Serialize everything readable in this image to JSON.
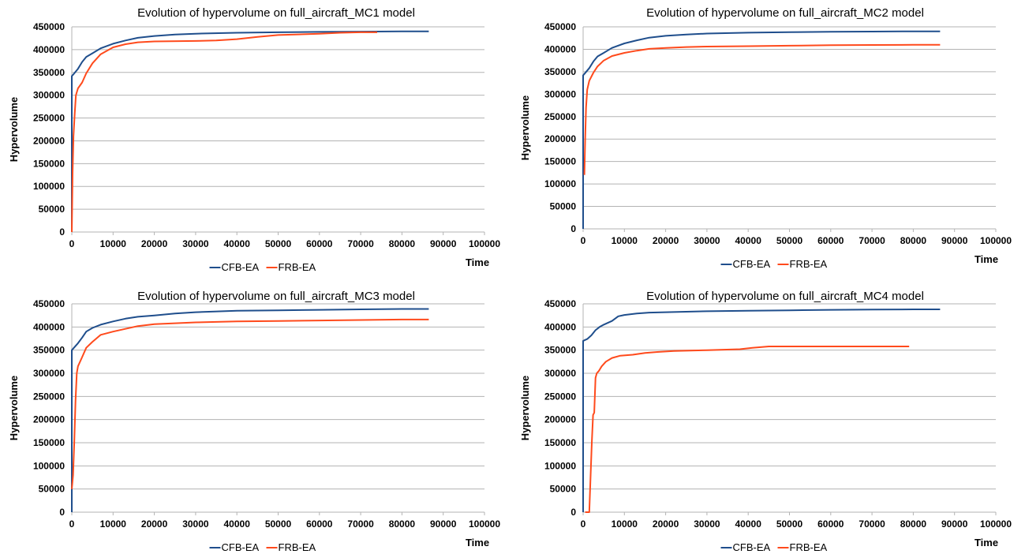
{
  "chart_data": [
    {
      "type": "line",
      "title": "Evolution of hypervolume on full_aircraft_MC1 model",
      "xlabel": "Time",
      "ylabel": "Hypervolume",
      "xlim": [
        0,
        100000
      ],
      "ylim": [
        0,
        450000
      ],
      "xticks": [
        "0",
        "10000",
        "20000",
        "30000",
        "40000",
        "50000",
        "60000",
        "70000",
        "80000",
        "90000",
        "100000"
      ],
      "yticks": [
        "0",
        "50000",
        "100000",
        "150000",
        "200000",
        "250000",
        "300000",
        "350000",
        "400000",
        "450000"
      ],
      "grid": true,
      "legend_position": "bottom",
      "series": [
        {
          "name": "CFB-EA",
          "color": "#1f4e8c",
          "x": [
            0,
            0,
            300,
            1500,
            2500,
            3500,
            5000,
            7000,
            10000,
            13000,
            16000,
            20000,
            25000,
            30000,
            40000,
            50000,
            60000,
            70000,
            80000,
            86500
          ],
          "y": [
            0,
            342000,
            345000,
            358000,
            373000,
            384000,
            392000,
            403000,
            413000,
            420000,
            426000,
            430000,
            433000,
            435000,
            437000,
            438000,
            439000,
            439500,
            440000,
            440000
          ]
        },
        {
          "name": "FRB-EA",
          "color": "#ff4a1c",
          "x": [
            0,
            200,
            400,
            700,
            1000,
            1500,
            2500,
            3500,
            5000,
            7000,
            10000,
            13000,
            16000,
            20000,
            30000,
            35000,
            40000,
            45000,
            50000,
            60000,
            65000,
            70000,
            74000
          ],
          "y": [
            0,
            130000,
            210000,
            260000,
            300000,
            315000,
            328000,
            348000,
            370000,
            390000,
            405000,
            412000,
            416000,
            418000,
            419000,
            420000,
            423000,
            428000,
            432000,
            435000,
            437000,
            438000,
            438000
          ]
        }
      ]
    },
    {
      "type": "line",
      "title": "Evolution of hypervolume on full_aircraft_MC2 model",
      "xlabel": "Time",
      "ylabel": "Hypervolume",
      "xlim": [
        0,
        100000
      ],
      "ylim": [
        0,
        450000
      ],
      "xticks": [
        "0",
        "10000",
        "20000",
        "30000",
        "40000",
        "50000",
        "60000",
        "70000",
        "80000",
        "90000",
        "100000"
      ],
      "yticks": [
        "0",
        "50000",
        "100000",
        "150000",
        "200000",
        "250000",
        "300000",
        "350000",
        "400000",
        "450000"
      ],
      "grid": true,
      "legend_position": "bottom",
      "series": [
        {
          "name": "CFB-EA",
          "color": "#1f4e8c",
          "x": [
            0,
            0,
            300,
            1500,
            2500,
            3500,
            5000,
            7000,
            10000,
            13000,
            16000,
            20000,
            25000,
            30000,
            40000,
            50000,
            60000,
            70000,
            80000,
            86500
          ],
          "y": [
            0,
            342000,
            345000,
            358000,
            373000,
            384000,
            392000,
            403000,
            413000,
            420000,
            426000,
            430000,
            433000,
            435000,
            437000,
            438000,
            439000,
            439500,
            440000,
            440000
          ]
        },
        {
          "name": "FRB-EA",
          "color": "#ff4a1c",
          "x": [
            300,
            500,
            700,
            1000,
            1500,
            2500,
            3500,
            5000,
            7000,
            10000,
            13000,
            16000,
            20000,
            25000,
            30000,
            40000,
            50000,
            60000,
            70000,
            80000,
            86500
          ],
          "y": [
            120000,
            200000,
            270000,
            310000,
            330000,
            348000,
            362000,
            375000,
            385000,
            392000,
            397000,
            401000,
            403000,
            405000,
            406000,
            407000,
            408000,
            409000,
            409500,
            410000,
            410000
          ]
        }
      ]
    },
    {
      "type": "line",
      "title": "Evolution of hypervolume on full_aircraft_MC3 model",
      "xlabel": "Time",
      "ylabel": "Hypervolume",
      "xlim": [
        0,
        100000
      ],
      "ylim": [
        0,
        450000
      ],
      "xticks": [
        "0",
        "10000",
        "20000",
        "30000",
        "40000",
        "50000",
        "60000",
        "70000",
        "80000",
        "90000",
        "100000"
      ],
      "yticks": [
        "0",
        "50000",
        "100000",
        "150000",
        "200000",
        "250000",
        "300000",
        "350000",
        "400000",
        "450000"
      ],
      "grid": true,
      "legend_position": "bottom",
      "series": [
        {
          "name": "CFB-EA",
          "color": "#1f4e8c",
          "x": [
            0,
            0,
            300,
            1500,
            2500,
            3500,
            5000,
            7000,
            10000,
            13000,
            16000,
            20000,
            25000,
            30000,
            40000,
            50000,
            60000,
            70000,
            80000,
            86500
          ],
          "y": [
            0,
            350000,
            353000,
            365000,
            377000,
            390000,
            398000,
            405000,
            412000,
            418000,
            422000,
            425000,
            429000,
            432000,
            435000,
            436000,
            437000,
            438000,
            439000,
            439000
          ]
        },
        {
          "name": "FRB-EA",
          "color": "#ff4a1c",
          "x": [
            0,
            300,
            600,
            900,
            1200,
            1500,
            2500,
            3500,
            5000,
            7000,
            10000,
            13000,
            16000,
            20000,
            25000,
            30000,
            40000,
            50000,
            60000,
            70000,
            80000,
            86500
          ],
          "y": [
            50000,
            80000,
            150000,
            240000,
            300000,
            315000,
            335000,
            355000,
            368000,
            383000,
            390000,
            396000,
            402000,
            406000,
            408000,
            410000,
            412000,
            413000,
            414000,
            415000,
            416000,
            416000
          ]
        }
      ]
    },
    {
      "type": "line",
      "title": "Evolution of hypervolume on full_aircraft_MC4 model",
      "xlabel": "Time",
      "ylabel": "Hypervolume",
      "xlim": [
        0,
        100000
      ],
      "ylim": [
        0,
        450000
      ],
      "xticks": [
        "0",
        "10000",
        "20000",
        "30000",
        "40000",
        "50000",
        "60000",
        "70000",
        "80000",
        "90000",
        "100000"
      ],
      "yticks": [
        "0",
        "50000",
        "100000",
        "150000",
        "200000",
        "250000",
        "300000",
        "350000",
        "400000",
        "450000"
      ],
      "grid": true,
      "legend_position": "bottom",
      "series": [
        {
          "name": "CFB-EA",
          "color": "#1f4e8c",
          "x": [
            0,
            0,
            1000,
            2000,
            3000,
            4000,
            5000,
            7000,
            8500,
            10000,
            13000,
            16000,
            20000,
            30000,
            40000,
            50000,
            60000,
            70000,
            80000,
            86500
          ],
          "y": [
            0,
            370000,
            374000,
            382000,
            393000,
            400000,
            405000,
            413000,
            423000,
            426000,
            429000,
            431000,
            432000,
            434000,
            435000,
            436000,
            437000,
            437500,
            438000,
            438000
          ]
        },
        {
          "name": "FRB-EA",
          "color": "#ff4a1c",
          "x": [
            500,
            1500,
            1800,
            2100,
            2400,
            2700,
            3000,
            3300,
            3800,
            4500,
            5500,
            7000,
            9000,
            12000,
            15000,
            18000,
            22000,
            30000,
            38000,
            41000,
            45000,
            50000,
            60000,
            70000,
            79000
          ],
          "y": [
            0,
            0,
            75000,
            150000,
            210000,
            215000,
            290000,
            300000,
            305000,
            315000,
            325000,
            333000,
            338000,
            340000,
            344000,
            346000,
            348000,
            350000,
            352000,
            355000,
            358000,
            358000,
            358000,
            358000,
            358000
          ]
        }
      ]
    }
  ]
}
